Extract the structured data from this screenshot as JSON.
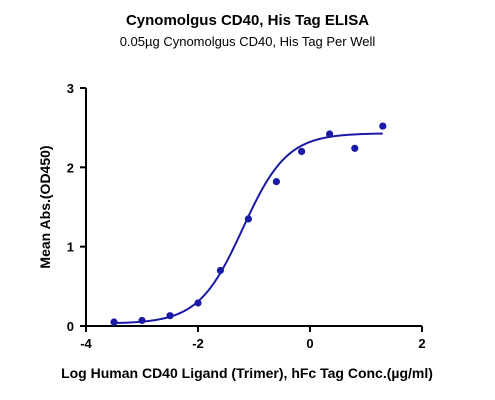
{
  "chart_data": {
    "type": "scatter",
    "title": "Cynomolgus CD40, His Tag ELISA",
    "subtitle": "0.05µg Cynomolgus CD40, His Tag Per Well",
    "xlabel": "Log Human CD40 Ligand (Trimer), hFc Tag Conc.(µg/ml)",
    "ylabel": "Mean Abs.(OD450)",
    "xlim": [
      -4,
      2
    ],
    "ylim": [
      0,
      3
    ],
    "x_ticks": [
      "-4",
      "-2",
      "0",
      "2"
    ],
    "y_ticks": [
      "0",
      "1",
      "2",
      "3"
    ],
    "grid": false,
    "legend": "none",
    "colors": {
      "series": "#1a1aa6",
      "axis": "#000000"
    },
    "series": [
      {
        "points": [
          {
            "x": -3.5,
            "y": 0.05
          },
          {
            "x": -3.0,
            "y": 0.07
          },
          {
            "x": -2.5,
            "y": 0.13
          },
          {
            "x": -2.0,
            "y": 0.29
          },
          {
            "x": -1.6,
            "y": 0.7
          },
          {
            "x": -1.1,
            "y": 1.35
          },
          {
            "x": -0.6,
            "y": 1.82
          },
          {
            "x": -0.15,
            "y": 2.2
          },
          {
            "x": 0.35,
            "y": 2.42
          },
          {
            "x": 0.8,
            "y": 2.24
          },
          {
            "x": 1.3,
            "y": 2.52
          }
        ],
        "fit": {
          "model": "4PL",
          "bottom": 0.03,
          "top": 2.43,
          "logEC50": -1.2,
          "hill": 1.1,
          "x_from": -3.5,
          "x_to": 1.3
        }
      }
    ]
  }
}
